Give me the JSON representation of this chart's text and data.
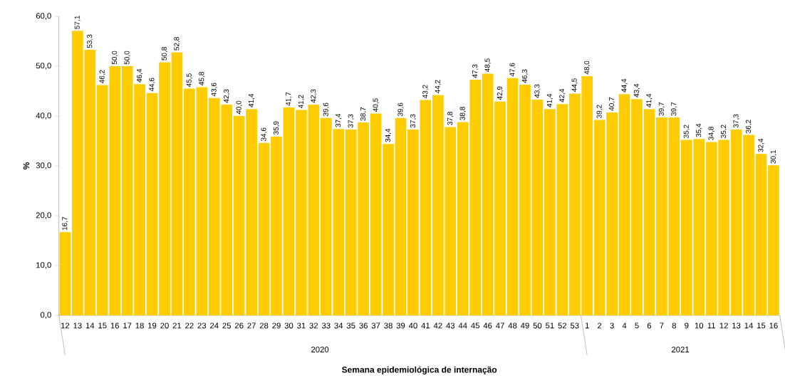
{
  "chart_data": {
    "type": "bar",
    "xlabel": "Semana epidemiológica de internação",
    "ylabel": "%",
    "categories": [
      "12",
      "13",
      "14",
      "15",
      "16",
      "17",
      "18",
      "19",
      "20",
      "21",
      "22",
      "23",
      "24",
      "25",
      "26",
      "27",
      "28",
      "29",
      "30",
      "31",
      "32",
      "33",
      "34",
      "35",
      "36",
      "37",
      "38",
      "39",
      "40",
      "41",
      "42",
      "43",
      "44",
      "45",
      "46",
      "47",
      "48",
      "49",
      "50",
      "51",
      "52",
      "53",
      "1",
      "2",
      "3",
      "4",
      "5",
      "6",
      "7",
      "8",
      "9",
      "10",
      "11",
      "12",
      "13",
      "14",
      "15",
      "16"
    ],
    "values": [
      16.7,
      57.1,
      53.3,
      46.2,
      50.0,
      50.0,
      46.4,
      44.6,
      50.8,
      52.8,
      45.5,
      45.8,
      43.6,
      42.3,
      40.0,
      41.4,
      34.6,
      35.9,
      41.7,
      41.2,
      42.3,
      39.6,
      37.4,
      37.3,
      38.7,
      40.5,
      34.4,
      39.6,
      37.3,
      43.2,
      44.2,
      37.8,
      38.8,
      47.3,
      48.5,
      42.9,
      47.6,
      46.3,
      43.3,
      41.4,
      42.4,
      44.5,
      48.0,
      39.2,
      40.7,
      44.4,
      43.4,
      41.4,
      39.7,
      39.7,
      35.2,
      35.4,
      34.8,
      35.2,
      37.3,
      36.2,
      32.4,
      30.1
    ],
    "value_labels": [
      "16,7",
      "57,1",
      "53,3",
      "46,2",
      "50,0",
      "50,0",
      "46,4",
      "44,6",
      "50,8",
      "52,8",
      "45,5",
      "45,8",
      "43,6",
      "42,3",
      "40,0",
      "41,4",
      "34,6",
      "35,9",
      "41,7",
      "41,2",
      "42,3",
      "39,6",
      "37,4",
      "37,3",
      "38,7",
      "40,5",
      "34,4",
      "39,6",
      "37,3",
      "43,2",
      "44,2",
      "37,8",
      "38,8",
      "47,3",
      "48,5",
      "42,9",
      "47,6",
      "46,3",
      "43,3",
      "41,4",
      "42,4",
      "44,5",
      "48,0",
      "39,2",
      "40,7",
      "44,4",
      "43,4",
      "41,4",
      "39,7",
      "39,7",
      "35,2",
      "35,4",
      "34,8",
      "35,2",
      "37,3",
      "36,2",
      "32,4",
      "30,1"
    ],
    "color": "#ffcc00",
    "ylim": [
      0,
      60
    ],
    "yticks": [
      {
        "value": 0,
        "label": "0,0"
      },
      {
        "value": 10,
        "label": "10,0"
      },
      {
        "value": 20,
        "label": "20,0"
      },
      {
        "value": 30,
        "label": "30,0"
      },
      {
        "value": 40,
        "label": "40,0"
      },
      {
        "value": 50,
        "label": "50,0"
      },
      {
        "value": 60,
        "label": "60,0"
      }
    ],
    "annotations": [
      "2020",
      "2021"
    ],
    "grid": false
  }
}
